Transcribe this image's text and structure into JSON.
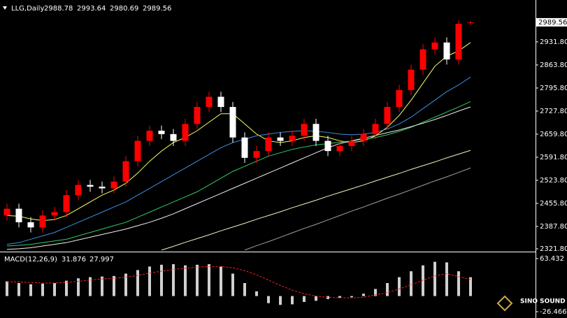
{
  "chart_data": [
    {
      "type": "candlestick",
      "title": "LLG,Daily",
      "open": [
        2420,
        2440,
        2400,
        2385,
        2420,
        2430,
        2480,
        2510,
        2505,
        2500,
        2520,
        2580,
        2640,
        2670,
        2660,
        2640,
        2690,
        2740,
        2770,
        2740,
        2650,
        2590,
        2610,
        2650,
        2640,
        2655,
        2690,
        2640,
        2610,
        2625,
        2640,
        2660,
        2690,
        2740,
        2790,
        2850,
        2910,
        2930,
        2880,
        2988.78
      ],
      "high": [
        2455,
        2455,
        2415,
        2435,
        2445,
        2495,
        2525,
        2525,
        2520,
        2535,
        2595,
        2655,
        2685,
        2685,
        2675,
        2705,
        2755,
        2785,
        2785,
        2755,
        2665,
        2625,
        2665,
        2665,
        2670,
        2705,
        2705,
        2655,
        2640,
        2655,
        2675,
        2705,
        2755,
        2805,
        2865,
        2925,
        2945,
        2945,
        2995,
        2993.64
      ],
      "low": [
        2405,
        2385,
        2370,
        2370,
        2405,
        2415,
        2465,
        2490,
        2485,
        2485,
        2505,
        2565,
        2625,
        2645,
        2625,
        2625,
        2675,
        2725,
        2725,
        2635,
        2575,
        2575,
        2595,
        2625,
        2625,
        2640,
        2625,
        2595,
        2595,
        2610,
        2625,
        2645,
        2675,
        2725,
        2775,
        2835,
        2895,
        2865,
        2865,
        2980.69
      ],
      "close": [
        2440,
        2400,
        2385,
        2420,
        2430,
        2480,
        2510,
        2505,
        2500,
        2520,
        2580,
        2640,
        2670,
        2660,
        2640,
        2690,
        2740,
        2770,
        2740,
        2650,
        2590,
        2610,
        2650,
        2640,
        2655,
        2690,
        2640,
        2610,
        2625,
        2640,
        2660,
        2690,
        2740,
        2790,
        2850,
        2910,
        2930,
        2880,
        2985,
        2989.56
      ],
      "up_color": "#ff0000",
      "down_color": "#ffffff",
      "lines": [
        {
          "color": "#ffff66",
          "values": [
            2420,
            2418,
            2410,
            2405,
            2408,
            2420,
            2440,
            2460,
            2480,
            2495,
            2515,
            2545,
            2580,
            2610,
            2635,
            2650,
            2670,
            2695,
            2720,
            2720,
            2690,
            2660,
            2640,
            2635,
            2640,
            2650,
            2655,
            2650,
            2640,
            2635,
            2640,
            2655,
            2680,
            2715,
            2760,
            2810,
            2860,
            2890,
            2905,
            2930
          ]
        },
        {
          "color": "#3f8fe0",
          "values": [
            2335,
            2340,
            2350,
            2360,
            2370,
            2385,
            2400,
            2415,
            2430,
            2445,
            2460,
            2480,
            2500,
            2520,
            2540,
            2560,
            2580,
            2600,
            2620,
            2635,
            2645,
            2655,
            2660,
            2665,
            2668,
            2670,
            2668,
            2665,
            2660,
            2658,
            2660,
            2665,
            2675,
            2690,
            2710,
            2735,
            2760,
            2785,
            2805,
            2828
          ]
        },
        {
          "color": "#33cc66",
          "values": [
            2330,
            2332,
            2335,
            2340,
            2345,
            2350,
            2360,
            2370,
            2380,
            2390,
            2400,
            2415,
            2430,
            2445,
            2460,
            2475,
            2490,
            2510,
            2530,
            2550,
            2565,
            2580,
            2595,
            2605,
            2615,
            2622,
            2628,
            2632,
            2636,
            2640,
            2645,
            2650,
            2658,
            2668,
            2680,
            2695,
            2710,
            2725,
            2740,
            2756
          ]
        },
        {
          "color": "#f0f0f0",
          "values": [
            2320,
            2322,
            2325,
            2330,
            2335,
            2340,
            2348,
            2356,
            2364,
            2372,
            2380,
            2390,
            2400,
            2412,
            2425,
            2440,
            2455,
            2470,
            2485,
            2500,
            2515,
            2530,
            2545,
            2560,
            2575,
            2590,
            2605,
            2620,
            2632,
            2640,
            2648,
            2656,
            2664,
            2672,
            2682,
            2692,
            2703,
            2715,
            2728,
            2740
          ]
        },
        {
          "color": "#f5f0c0",
          "values": [
            null,
            null,
            null,
            null,
            null,
            null,
            null,
            null,
            null,
            null,
            null,
            null,
            null,
            2318,
            2329,
            2341,
            2352,
            2363,
            2375,
            2386,
            2397,
            2409,
            2420,
            2431,
            2443,
            2454,
            2465,
            2477,
            2488,
            2499,
            2510,
            2522,
            2533,
            2544,
            2556,
            2567,
            2578,
            2590,
            2601,
            2612
          ]
        },
        {
          "color": "#a0a0a0",
          "values": [
            null,
            null,
            null,
            null,
            null,
            null,
            null,
            null,
            null,
            null,
            null,
            null,
            null,
            null,
            null,
            null,
            null,
            null,
            null,
            null,
            2318,
            2331,
            2343,
            2356,
            2369,
            2382,
            2394,
            2407,
            2420,
            2433,
            2445,
            2458,
            2471,
            2483,
            2496,
            2509,
            2522,
            2534,
            2547,
            2560
          ]
        }
      ],
      "ylim": [
        2317.7,
        3045
      ],
      "yticks": [
        {
          "value": 2931.8,
          "label": "2931.80"
        },
        {
          "value": 2863.8,
          "label": "2863.80"
        },
        {
          "value": 2795.8,
          "label": "2795.80"
        },
        {
          "value": 2727.8,
          "label": "2727.80"
        },
        {
          "value": 2659.8,
          "label": "2659.80"
        },
        {
          "value": 2591.8,
          "label": "2591.80"
        },
        {
          "value": 2523.8,
          "label": "2523.80"
        },
        {
          "value": 2455.8,
          "label": "2455.80"
        },
        {
          "value": 2387.8,
          "label": "2387.80"
        },
        {
          "value": 2321.8,
          "label": "2321.80"
        }
      ]
    },
    {
      "type": "macd",
      "title": "MACD(12,26,9)",
      "histogram": {
        "color": "#d0d0d0",
        "values": [
          25,
          22,
          20,
          21,
          22,
          26,
          30,
          32,
          33,
          34,
          38,
          44,
          50,
          53,
          54,
          52,
          53,
          54,
          50,
          38,
          22,
          8,
          -12,
          -15,
          -14,
          -10,
          -8,
          -5,
          -3,
          -2,
          4,
          12,
          22,
          32,
          42,
          52,
          58,
          57,
          42,
          31.876
        ]
      },
      "signal": {
        "color": "#ff2020",
        "values": [
          24,
          24,
          23,
          22,
          22,
          23,
          25,
          27,
          29,
          30,
          32,
          35,
          39,
          42,
          45,
          47,
          49,
          50,
          50,
          48,
          43,
          36,
          27,
          18,
          10,
          4,
          0,
          -2,
          -3,
          -3,
          -2,
          2,
          6,
          12,
          19,
          27,
          34,
          38,
          33,
          27.997
        ]
      },
      "ylim": [
        -33.6,
        72.9
      ],
      "yticks": [
        63.432,
        -26.466
      ]
    }
  ],
  "watermark": "SINO SOUND"
}
